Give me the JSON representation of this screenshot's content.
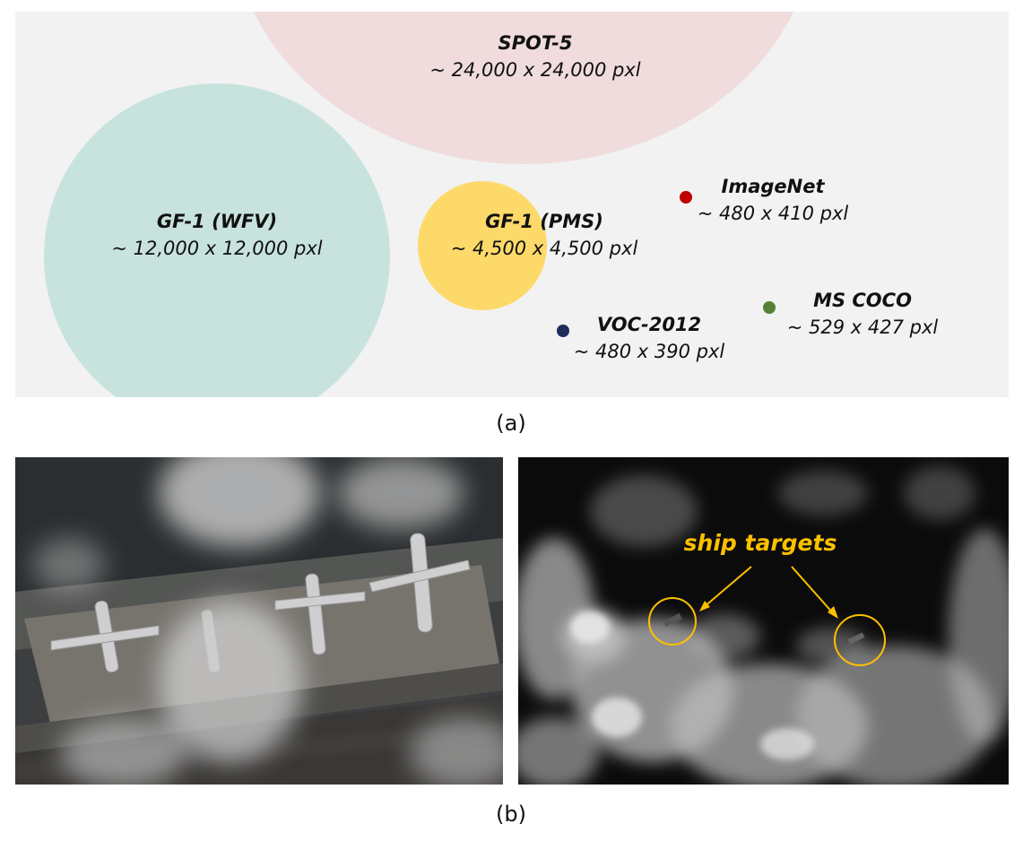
{
  "panel_a": {
    "caption": "(a)",
    "datasets": [
      {
        "name": "SPOT-5",
        "size": "~ 24,000 x 24,000 pxl",
        "color": "#f0dcdc"
      },
      {
        "name": "GF-1 (WFV)",
        "size": "~ 12,000 x 12,000 pxl",
        "color": "#c8e3dd"
      },
      {
        "name": "GF-1 (PMS)",
        "size": "~ 4,500 x 4,500 pxl",
        "color": "#fdd96a"
      },
      {
        "name": "ImageNet",
        "size": "~ 480 x 410 pxl",
        "color": "#c00000"
      },
      {
        "name": "VOC-2012",
        "size": "~ 480 x 390 pxl",
        "color": "#1f2d5c"
      },
      {
        "name": "MS COCO",
        "size": "~ 529 x 427 pxl",
        "color": "#548235"
      }
    ]
  },
  "panel_b": {
    "caption": "(b)",
    "annotation": "ship targets",
    "annotation_color": "#ffc000"
  }
}
